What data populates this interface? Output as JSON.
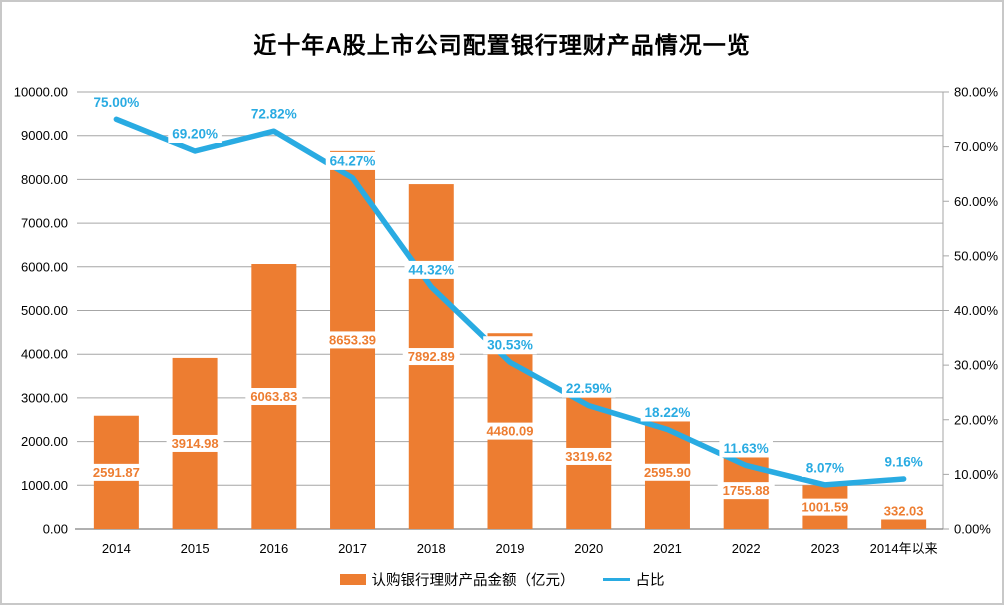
{
  "chart_data": {
    "type": "combo",
    "title": "近十年A股上市公司配置银行理财产品情况一览",
    "categories": [
      "2014",
      "2015",
      "2016",
      "2017",
      "2018",
      "2019",
      "2020",
      "2021",
      "2022",
      "2023",
      "2014年以来"
    ],
    "series": [
      {
        "name": "认购银行理财产品金额（亿元）",
        "type": "bar",
        "axis": "left",
        "color": "#ED7D31",
        "values": [
          2591.87,
          3914.98,
          6063.83,
          8653.39,
          7892.89,
          4480.09,
          3319.62,
          2595.9,
          1755.88,
          1001.59,
          332.03
        ],
        "labels": [
          "2591.87",
          "3914.98",
          "6063.83",
          "8653.39",
          "7892.89",
          "4480.09",
          "3319.62",
          "2595.90",
          "1755.88",
          "1001.59",
          "332.03"
        ]
      },
      {
        "name": "占比",
        "type": "line",
        "axis": "right",
        "color": "#29ABE2",
        "values": [
          75.0,
          69.2,
          72.82,
          64.27,
          44.32,
          30.53,
          22.59,
          18.22,
          11.63,
          8.07,
          9.16
        ],
        "labels": [
          "75.00%",
          "69.20%",
          "72.82%",
          "64.27%",
          "44.32%",
          "30.53%",
          "22.59%",
          "18.22%",
          "11.63%",
          "8.07%",
          "9.16%"
        ]
      }
    ],
    "axes": {
      "left": {
        "min": 0,
        "max": 10000,
        "step": 1000,
        "ticks": [
          "10000.00",
          "9000.00",
          "8000.00",
          "7000.00",
          "6000.00",
          "5000.00",
          "4000.00",
          "3000.00",
          "2000.00",
          "1000.00",
          "0.00"
        ]
      },
      "right": {
        "min": 0,
        "max": 80,
        "step": 10,
        "ticks": [
          "80.00%",
          "70.00%",
          "60.00%",
          "50.00%",
          "40.00%",
          "30.00%",
          "20.00%",
          "10.00%",
          "0.00%"
        ]
      }
    },
    "grid": true,
    "legend_position": "bottom",
    "colors": {
      "grid": "#A6A6A6",
      "axis_line": "#808080",
      "tick_axis": "#A6A6A6",
      "text": "#000000",
      "background": "#FFFFFF",
      "border": "#C8C8C8"
    }
  }
}
